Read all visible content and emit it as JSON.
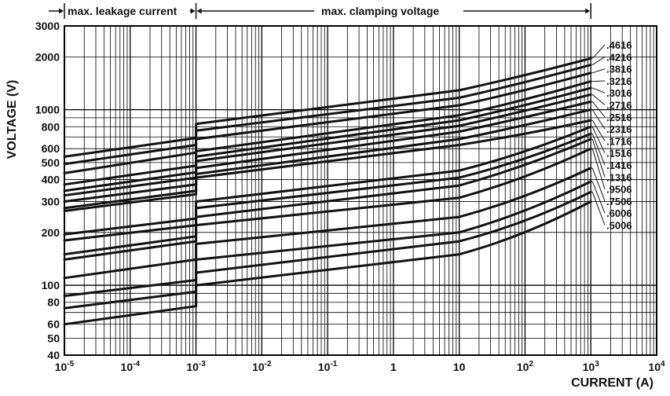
{
  "chart_data": {
    "type": "line",
    "title": "",
    "xlabel": "CURRENT (A)",
    "ylabel": "VOLTAGE (V)",
    "xscale": "log",
    "yscale": "log",
    "xlim": [
      1e-05,
      10000
    ],
    "ylim": [
      40,
      3000
    ],
    "grid": true,
    "x_ticks": [
      {
        "base": "10",
        "exp": "-5"
      },
      {
        "base": "10",
        "exp": "-4"
      },
      {
        "base": "10",
        "exp": "-3"
      },
      {
        "base": "10",
        "exp": "-2"
      },
      {
        "base": "10",
        "exp": "-1"
      },
      {
        "base": "1",
        "exp": ""
      },
      {
        "base": "10",
        "exp": ""
      },
      {
        "base": "10",
        "exp": "2"
      },
      {
        "base": "10",
        "exp": "3"
      },
      {
        "base": "10",
        "exp": "4"
      }
    ],
    "y_ticks": [
      "40",
      "50",
      "60",
      "80",
      "100",
      "200",
      "300",
      "400",
      "500",
      "600",
      "800",
      "1000",
      "2000",
      "3000"
    ],
    "ranges": [
      {
        "label": "max. leakage current",
        "from": 1e-05,
        "to": 0.001
      },
      {
        "label": "max. clamping voltage",
        "from": 0.001,
        "to": 1000
      }
    ],
    "x_points": [
      1e-05,
      0.001,
      0.001,
      10,
      100,
      1000
    ],
    "series": [
      {
        "name": ".4616",
        "values": [
          540,
          690,
          830,
          1290,
          1560,
          1960
        ]
      },
      {
        "name": ".4216",
        "values": [
          490,
          630,
          760,
          1170,
          1420,
          1800
        ]
      },
      {
        "name": ".3816",
        "values": [
          435,
          570,
          680,
          1060,
          1280,
          1620
        ]
      },
      {
        "name": ".3216",
        "values": [
          375,
          480,
          580,
          930,
          1130,
          1450
        ]
      },
      {
        "name": ".3016",
        "values": [
          345,
          440,
          540,
          870,
          1050,
          1330
        ]
      },
      {
        "name": ".2716",
        "values": [
          325,
          410,
          510,
          810,
          980,
          1220
        ]
      },
      {
        "name": ".2516",
        "values": [
          300,
          375,
          465,
          750,
          900,
          1110
        ]
      },
      {
        "name": ".2316",
        "values": [
          275,
          345,
          430,
          680,
          810,
          1000
        ]
      },
      {
        "name": ".1716",
        "values": [
          265,
          330,
          410,
          630,
          720,
          870
        ]
      },
      {
        "name": ".1516",
        "values": [
          195,
          240,
          300,
          450,
          560,
          800
        ]
      },
      {
        "name": ".1416",
        "values": [
          180,
          220,
          275,
          410,
          510,
          730
        ]
      },
      {
        "name": ".1316",
        "values": [
          150,
          190,
          245,
          370,
          470,
          680
        ]
      },
      {
        "name": ".9506",
        "values": [
          140,
          178,
          220,
          315,
          400,
          600
        ]
      },
      {
        "name": ".7506",
        "values": [
          110,
          140,
          172,
          245,
          310,
          465
        ]
      },
      {
        "name": ".6006",
        "values": [
          87,
          107,
          140,
          200,
          255,
          390
        ]
      },
      {
        "name": ".5006",
        "values": [
          74,
          92,
          118,
          178,
          222,
          340
        ]
      },
      {
        "name": "",
        "values": [
          60,
          76,
          100,
          150,
          190,
          300
        ]
      }
    ]
  }
}
